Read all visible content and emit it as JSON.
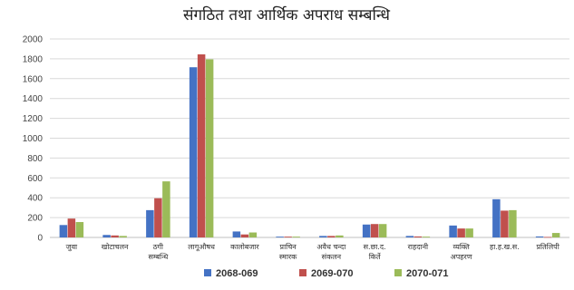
{
  "chart_data": {
    "type": "bar",
    "title": "संगठित तथा आर्थिक अपराध सम्बन्धि",
    "categories": [
      [
        "जुवा"
      ],
      [
        "खोटाचलन"
      ],
      [
        "ठगी",
        "सम्बन्धि"
      ],
      [
        "लागूऔषध"
      ],
      [
        "कालोबजार"
      ],
      [
        "प्राचिन",
        "स्मारक"
      ],
      [
        "अवैध चन्दा",
        "संकलन"
      ],
      [
        "स.छा.द.",
        "किर्ते"
      ],
      [
        "राहदानी"
      ],
      [
        "व्यक्ति",
        "अपहरण"
      ],
      [
        "हा.ह.ख.स."
      ],
      [
        "प्रतिलिपी"
      ]
    ],
    "series": [
      {
        "name": "2068-069",
        "color": "#4472C4",
        "values": [
          125,
          25,
          275,
          1715,
          60,
          8,
          15,
          130,
          15,
          120,
          385,
          10
        ]
      },
      {
        "name": "2069-070",
        "color": "#C0504D",
        "values": [
          190,
          20,
          395,
          1845,
          30,
          8,
          15,
          135,
          10,
          90,
          270,
          5
        ]
      },
      {
        "name": "2070-071",
        "color": "#9BBB59",
        "values": [
          155,
          15,
          565,
          1795,
          50,
          8,
          20,
          135,
          8,
          90,
          275,
          45
        ]
      }
    ],
    "yticks": [
      "0",
      "200",
      "400",
      "600",
      "800",
      "1000",
      "1200",
      "1400",
      "1600",
      "1800",
      "2000"
    ],
    "ylim": [
      0,
      2000
    ],
    "grid": true,
    "legend_position": "bottom"
  }
}
